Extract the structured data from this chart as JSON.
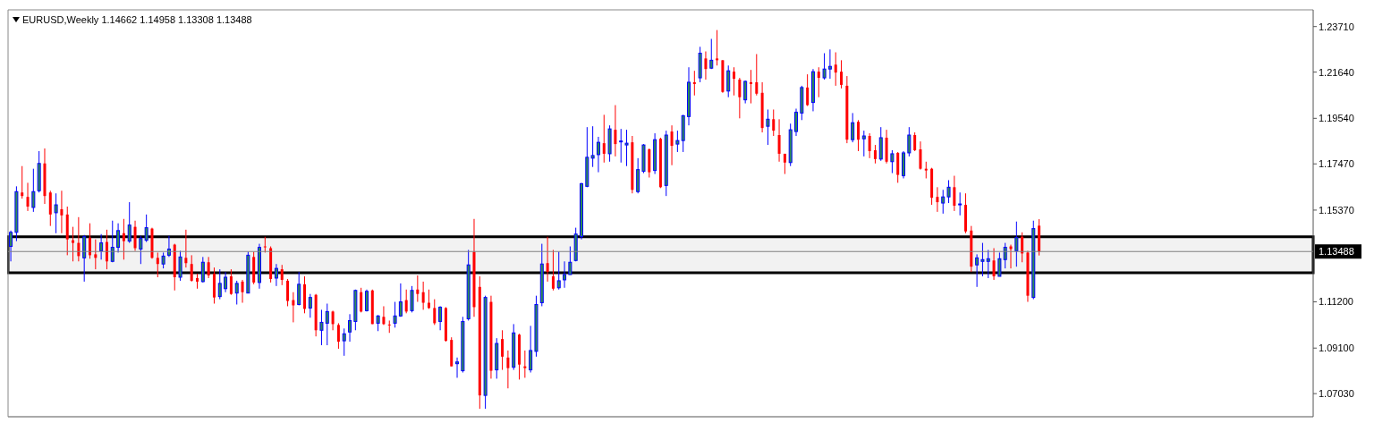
{
  "chart_data": {
    "type": "candlestick",
    "title": "EURUSD,Weekly 1.14662 1.14958 1.13308 1.13488",
    "categories": [
      null,
      null,
      null,
      null,
      null,
      null,
      null,
      null,
      null,
      null,
      null,
      null,
      null,
      null,
      null,
      null,
      null,
      null,
      null,
      null,
      null,
      null,
      null,
      null,
      null,
      null,
      null,
      null,
      null,
      null,
      null,
      null,
      null,
      null,
      null,
      null,
      null,
      null,
      null,
      null,
      null,
      null,
      null,
      null,
      null,
      null,
      null,
      null,
      null,
      null,
      null,
      null,
      null,
      null,
      null,
      null,
      null,
      null,
      null,
      null,
      null,
      null,
      null,
      null,
      null,
      null,
      null,
      null,
      null,
      null,
      null,
      null,
      null,
      null,
      null,
      null,
      null,
      null,
      null,
      null,
      null,
      null,
      null,
      null,
      null,
      null,
      null,
      null,
      null,
      null,
      null,
      null,
      null,
      null,
      null,
      null,
      null,
      null,
      null,
      null,
      null,
      null,
      null,
      null,
      null,
      null,
      null,
      null,
      null,
      null,
      null,
      null,
      null,
      null,
      null,
      null,
      null,
      null,
      null,
      null,
      null,
      null,
      null,
      null,
      null,
      null,
      null,
      null,
      null,
      null,
      null,
      null,
      null,
      null,
      null,
      null,
      null,
      null,
      null,
      null,
      null,
      null,
      null,
      null,
      null,
      null,
      null,
      null,
      null,
      null,
      null,
      null,
      null,
      null,
      null,
      null,
      null,
      null,
      null,
      null,
      null,
      null,
      null,
      null,
      null,
      null,
      null,
      null,
      null,
      null,
      null,
      null,
      null,
      null,
      null,
      null,
      null,
      null,
      null,
      null,
      null,
      null,
      null,
      null,
      null,
      null,
      null,
      null,
      null,
      null,
      null,
      null,
      null,
      null,
      null,
      null,
      null,
      null,
      null,
      null,
      null,
      null,
      null,
      null,
      null,
      null,
      null,
      null,
      null,
      null,
      null,
      null,
      null,
      null,
      null,
      null,
      null,
      null,
      null,
      null,
      null,
      null,
      null,
      null,
      null,
      null,
      null,
      null,
      null,
      null,
      null
    ],
    "ohlc": [
      [
        1.1372,
        1.1444,
        1.1304,
        1.1436
      ],
      [
        1.1436,
        1.1645,
        1.1396,
        1.1621
      ],
      [
        1.1617,
        1.1737,
        1.1589,
        1.1601
      ],
      [
        1.1597,
        1.1661,
        1.1533,
        1.1553
      ],
      [
        1.1549,
        1.1725,
        1.1529,
        1.1621
      ],
      [
        1.1625,
        1.1805,
        1.1617,
        1.1749
      ],
      [
        1.1749,
        1.1817,
        1.1565,
        1.1601
      ],
      [
        1.1617,
        1.1625,
        1.1465,
        1.1517
      ],
      [
        1.1525,
        1.1613,
        1.1432,
        1.1561
      ],
      [
        1.1541,
        1.1625,
        1.1432,
        1.1513
      ],
      [
        1.1517,
        1.1553,
        1.1332,
        1.1404
      ],
      [
        1.14,
        1.1461,
        1.1304,
        1.1388
      ],
      [
        1.1388,
        1.1505,
        1.1304,
        1.1328
      ],
      [
        1.132,
        1.1424,
        1.1212,
        1.1416
      ],
      [
        1.1412,
        1.1477,
        1.1316,
        1.1332
      ],
      [
        1.1336,
        1.1404,
        1.1268,
        1.132
      ],
      [
        1.1352,
        1.1428,
        1.1312,
        1.1388
      ],
      [
        1.1392,
        1.1448,
        1.1268,
        1.1304
      ],
      [
        1.1304,
        1.1489,
        1.13,
        1.1368
      ],
      [
        1.1368,
        1.1477,
        1.1344,
        1.1444
      ],
      [
        1.1432,
        1.1497,
        1.1312,
        1.1396
      ],
      [
        1.1396,
        1.1573,
        1.1388,
        1.1469
      ],
      [
        1.1461,
        1.1489,
        1.1352,
        1.1364
      ],
      [
        1.136,
        1.142,
        1.1292,
        1.1408
      ],
      [
        1.14,
        1.1517,
        1.1392,
        1.1457
      ],
      [
        1.1453,
        1.1457,
        1.1316,
        1.132
      ],
      [
        1.132,
        1.1344,
        1.1232,
        1.1292
      ],
      [
        1.1292,
        1.1344,
        1.1272,
        1.1328
      ],
      [
        1.1332,
        1.142,
        1.1324,
        1.136
      ],
      [
        1.138,
        1.1384,
        1.1172,
        1.1232
      ],
      [
        1.1232,
        1.1352,
        1.1216,
        1.1324
      ],
      [
        1.132,
        1.1448,
        1.1276,
        1.1296
      ],
      [
        1.1292,
        1.1332,
        1.1212,
        1.1216
      ],
      [
        1.1228,
        1.1248,
        1.118,
        1.1212
      ],
      [
        1.1212,
        1.1324,
        1.1208,
        1.13
      ],
      [
        1.13,
        1.1324,
        1.1228,
        1.124
      ],
      [
        1.1248,
        1.1276,
        1.1112,
        1.114
      ],
      [
        1.1144,
        1.1268,
        1.1132,
        1.1204
      ],
      [
        1.118,
        1.1256,
        1.1164,
        1.1232
      ],
      [
        1.1236,
        1.1268,
        1.1152,
        1.1156
      ],
      [
        1.116,
        1.1216,
        1.1108,
        1.1204
      ],
      [
        1.1212,
        1.122,
        1.1116,
        1.1164
      ],
      [
        1.116,
        1.1348,
        1.116,
        1.1332
      ],
      [
        1.1324,
        1.1348,
        1.12,
        1.1208
      ],
      [
        1.1208,
        1.1384,
        1.118,
        1.1368
      ],
      [
        1.1372,
        1.1416,
        1.1344,
        1.1368
      ],
      [
        1.1364,
        1.1372,
        1.1208,
        1.1224
      ],
      [
        1.1228,
        1.1292,
        1.1192,
        1.1272
      ],
      [
        1.1268,
        1.1288,
        1.1196,
        1.122
      ],
      [
        1.1216,
        1.1224,
        1.11,
        1.1124
      ],
      [
        1.1128,
        1.1164,
        1.1027,
        1.1104
      ],
      [
        1.1108,
        1.1256,
        1.1104,
        1.12
      ],
      [
        1.12,
        1.1236,
        1.1068,
        1.1088
      ],
      [
        1.1092,
        1.1156,
        1.1048,
        1.114
      ],
      [
        1.1152,
        1.1156,
        1.0963,
        1.0991
      ],
      [
        1.0991,
        1.1084,
        1.0923,
        1.1027
      ],
      [
        1.1023,
        1.1112,
        1.0923,
        1.1076
      ],
      [
        1.1076,
        1.108,
        1.0991,
        1.1019
      ],
      [
        1.1015,
        1.1023,
        1.0907,
        1.0939
      ],
      [
        1.0943,
        1.0999,
        1.0875,
        1.0975
      ],
      [
        1.0983,
        1.1064,
        1.0939,
        1.1035
      ],
      [
        1.1031,
        1.1176,
        1.0991,
        1.1172
      ],
      [
        1.1164,
        1.1184,
        1.1072,
        1.1076
      ],
      [
        1.108,
        1.1176,
        1.1076,
        1.1168
      ],
      [
        1.1172,
        1.1176,
        1.1019,
        1.1019
      ],
      [
        1.1023,
        1.106,
        1.0987,
        1.1056
      ],
      [
        1.1052,
        1.11,
        1.1015,
        1.1019
      ],
      [
        1.1017,
        1.1035,
        1.0979,
        1.1015
      ],
      [
        1.1023,
        1.112,
        1.1003,
        1.1056
      ],
      [
        1.1056,
        1.1204,
        1.1052,
        1.112
      ],
      [
        1.1128,
        1.1176,
        1.1068,
        1.1076
      ],
      [
        1.108,
        1.1192,
        1.1072,
        1.1172
      ],
      [
        1.1176,
        1.124,
        1.112,
        1.1156
      ],
      [
        1.1164,
        1.1212,
        1.1084,
        1.1116
      ],
      [
        1.1116,
        1.1176,
        1.1088,
        1.1092
      ],
      [
        1.1092,
        1.1132,
        1.1015,
        1.1023
      ],
      [
        1.1031,
        1.11,
        1.0991,
        1.1096
      ],
      [
        1.1092,
        1.1096,
        1.0939,
        1.0943
      ],
      [
        1.0947,
        1.0959,
        1.0827,
        1.0827
      ],
      [
        1.0839,
        1.0867,
        1.0775,
        1.0847
      ],
      [
        1.0807,
        1.1052,
        1.0799,
        1.1031
      ],
      [
        1.1043,
        1.1356,
        1.1035,
        1.1288
      ],
      [
        1.1348,
        1.1497,
        1.1052,
        1.1096
      ],
      [
        1.1188,
        1.1236,
        1.0634,
        1.0695
      ],
      [
        1.0695,
        1.1148,
        1.0634,
        1.114
      ],
      [
        1.112,
        1.1148,
        1.0771,
        1.0807
      ],
      [
        1.0811,
        1.0955,
        1.0771,
        1.0931
      ],
      [
        1.0951,
        1.0991,
        1.0811,
        1.0871
      ],
      [
        1.0867,
        1.0899,
        1.0727,
        1.0819
      ],
      [
        1.0823,
        1.1019,
        1.0811,
        1.0979
      ],
      [
        1.0971,
        1.0975,
        1.0767,
        1.0835
      ],
      [
        1.0827,
        1.0899,
        1.0775,
        1.0819
      ],
      [
        1.0811,
        1.1011,
        1.0799,
        1.0899
      ],
      [
        1.0895,
        1.1148,
        1.0871,
        1.1108
      ],
      [
        1.1116,
        1.1384,
        1.11,
        1.1292
      ],
      [
        1.1296,
        1.1416,
        1.1212,
        1.1256
      ],
      [
        1.1236,
        1.1356,
        1.1172,
        1.118
      ],
      [
        1.1184,
        1.1348,
        1.1176,
        1.1216
      ],
      [
        1.122,
        1.1304,
        1.1184,
        1.1244
      ],
      [
        1.1244,
        1.1372,
        1.1244,
        1.13
      ],
      [
        1.1308,
        1.1457,
        1.1304,
        1.1428
      ],
      [
        1.1416,
        1.1661,
        1.1404,
        1.1657
      ],
      [
        1.1645,
        1.1914,
        1.1641,
        1.1777
      ],
      [
        1.1773,
        1.1918,
        1.1733,
        1.1785
      ],
      [
        1.1789,
        1.187,
        1.1709,
        1.1845
      ],
      [
        1.1841,
        1.197,
        1.1753,
        1.1793
      ],
      [
        1.1793,
        1.1922,
        1.1757,
        1.1906
      ],
      [
        1.1902,
        1.2014,
        1.1781,
        1.1837
      ],
      [
        1.1847,
        1.1906,
        1.1753,
        1.1851
      ],
      [
        1.1833,
        1.1902,
        1.1737,
        1.1841
      ],
      [
        1.1845,
        1.1874,
        1.1613,
        1.1629
      ],
      [
        1.1621,
        1.1773,
        1.1613,
        1.1721
      ],
      [
        1.1713,
        1.1837,
        1.1705,
        1.1833
      ],
      [
        1.1813,
        1.1817,
        1.1685,
        1.1709
      ],
      [
        1.1717,
        1.1886,
        1.1701,
        1.1857
      ],
      [
        1.1861,
        1.1866,
        1.1637,
        1.1641
      ],
      [
        1.1649,
        1.1898,
        1.1601,
        1.1878
      ],
      [
        1.1894,
        1.1922,
        1.1741,
        1.1829
      ],
      [
        1.1837,
        1.1898,
        1.1801,
        1.1853
      ],
      [
        1.1853,
        1.197,
        1.1801,
        1.1966
      ],
      [
        1.1962,
        1.2186,
        1.1922,
        1.2118
      ],
      [
        1.2118,
        1.217,
        1.2058,
        1.211
      ],
      [
        1.2138,
        1.2279,
        1.2118,
        1.225
      ],
      [
        1.2226,
        1.2258,
        1.213,
        1.2178
      ],
      [
        1.2182,
        1.2315,
        1.2178,
        1.2218
      ],
      [
        1.2226,
        1.2355,
        1.2194,
        1.2218
      ],
      [
        1.2218,
        1.2218,
        1.207,
        1.2074
      ],
      [
        1.2078,
        1.2194,
        1.205,
        1.217
      ],
      [
        1.2166,
        1.2186,
        1.2058,
        1.2134
      ],
      [
        1.213,
        1.2138,
        1.1954,
        1.205
      ],
      [
        1.2038,
        1.2126,
        1.2022,
        1.2122
      ],
      [
        1.2118,
        1.2174,
        1.2022,
        1.211
      ],
      [
        1.2118,
        1.2246,
        1.2058,
        1.2066
      ],
      [
        1.207,
        1.2118,
        1.189,
        1.191
      ],
      [
        1.1918,
        1.1994,
        1.1833,
        1.195
      ],
      [
        1.195,
        1.1994,
        1.1874,
        1.1898
      ],
      [
        1.1878,
        1.195,
        1.1757,
        1.1793
      ],
      [
        1.1793,
        1.1793,
        1.1701,
        1.1753
      ],
      [
        1.1753,
        1.193,
        1.1737,
        1.1902
      ],
      [
        1.1894,
        1.1998,
        1.1874,
        1.1982
      ],
      [
        1.1978,
        1.2102,
        1.1946,
        1.2094
      ],
      [
        1.2094,
        1.2154,
        1.201,
        1.2014
      ],
      [
        1.2026,
        1.2178,
        1.1986,
        1.2166
      ],
      [
        1.2166,
        1.2186,
        1.205,
        1.2138
      ],
      [
        1.2138,
        1.225,
        1.213,
        1.2178
      ],
      [
        1.2178,
        1.2267,
        1.2134,
        1.219
      ],
      [
        1.2198,
        1.2254,
        1.2102,
        1.2162
      ],
      [
        1.2166,
        1.2218,
        1.209,
        1.2106
      ],
      [
        1.2102,
        1.2146,
        1.1841,
        1.1857
      ],
      [
        1.1857,
        1.1978,
        1.1845,
        1.1934
      ],
      [
        1.1938,
        1.1946,
        1.1805,
        1.1857
      ],
      [
        1.1861,
        1.1898,
        1.1781,
        1.1874
      ],
      [
        1.1874,
        1.1886,
        1.1773,
        1.1805
      ],
      [
        1.1809,
        1.1833,
        1.1749,
        1.1769
      ],
      [
        1.1769,
        1.1914,
        1.1761,
        1.1866
      ],
      [
        1.1866,
        1.1902,
        1.1749,
        1.1757
      ],
      [
        1.1757,
        1.1809,
        1.1705,
        1.1793
      ],
      [
        1.1797,
        1.1801,
        1.1661,
        1.1697
      ],
      [
        1.1693,
        1.1805,
        1.1681,
        1.1797
      ],
      [
        1.1797,
        1.1914,
        1.1781,
        1.1878
      ],
      [
        1.1878,
        1.189,
        1.1805,
        1.1809
      ],
      [
        1.1813,
        1.1849,
        1.1721,
        1.1725
      ],
      [
        1.1725,
        1.1757,
        1.1681,
        1.1717
      ],
      [
        1.1725,
        1.1729,
        1.1561,
        1.1593
      ],
      [
        1.1597,
        1.1641,
        1.1529,
        1.1573
      ],
      [
        1.1569,
        1.1629,
        1.1521,
        1.1597
      ],
      [
        1.1597,
        1.1673,
        1.1569,
        1.1641
      ],
      [
        1.1641,
        1.1693,
        1.1533,
        1.1557
      ],
      [
        1.1561,
        1.1617,
        1.1513,
        1.1565
      ],
      [
        1.1561,
        1.1613,
        1.1432,
        1.144
      ],
      [
        1.1444,
        1.1465,
        1.1256,
        1.128
      ],
      [
        1.1288,
        1.1336,
        1.1188,
        1.132
      ],
      [
        1.1304,
        1.1388,
        1.1236,
        1.1312
      ],
      [
        1.1304,
        1.1356,
        1.1228,
        1.1316
      ],
      [
        1.1308,
        1.1364,
        1.122,
        1.1236
      ],
      [
        1.1236,
        1.1344,
        1.1236,
        1.1316
      ],
      [
        1.1312,
        1.1388,
        1.1272,
        1.1368
      ],
      [
        1.1372,
        1.138,
        1.1272,
        1.136
      ],
      [
        1.1352,
        1.1485,
        1.128,
        1.1412
      ],
      [
        1.1416,
        1.1436,
        1.13,
        1.134
      ],
      [
        1.1344,
        1.1352,
        1.112,
        1.1148
      ],
      [
        1.114,
        1.1489,
        1.1132,
        1.1453
      ],
      [
        1.14662,
        1.14958,
        1.13308,
        1.13488
      ],
      null,
      null,
      null,
      null,
      null,
      null,
      null,
      null,
      null,
      null,
      null,
      null,
      null,
      null,
      null,
      null,
      null,
      null,
      null,
      null,
      null,
      null,
      null,
      null,
      null,
      null,
      null,
      null,
      null,
      null,
      null,
      null,
      null,
      null,
      null,
      null,
      null,
      null,
      null,
      null,
      null,
      null,
      null,
      null,
      null,
      null,
      null,
      null
    ],
    "ylim": [
      1.0598,
      1.2447
    ],
    "yticks": [
      {
        "value": 1.0703,
        "label": "1.07030"
      },
      {
        "value": 1.091,
        "label": "1.09100"
      },
      {
        "value": 1.112,
        "label": "1.11200"
      },
      {
        "value": 1.1537,
        "label": "1.15370"
      },
      {
        "value": 1.1747,
        "label": "1.17470"
      },
      {
        "value": 1.1954,
        "label": "1.19540"
      },
      {
        "value": 1.2164,
        "label": "1.21640"
      },
      {
        "value": 1.2371,
        "label": "1.23710"
      }
    ],
    "ref_lines": [
      {
        "axis": "y",
        "value": 1.13488,
        "label": "1.13488",
        "color": "#808080"
      }
    ],
    "bands": [
      {
        "axis": "y",
        "from": 1.1252,
        "to": 1.1416,
        "color": "#000000"
      }
    ],
    "tick_labels": "y"
  }
}
